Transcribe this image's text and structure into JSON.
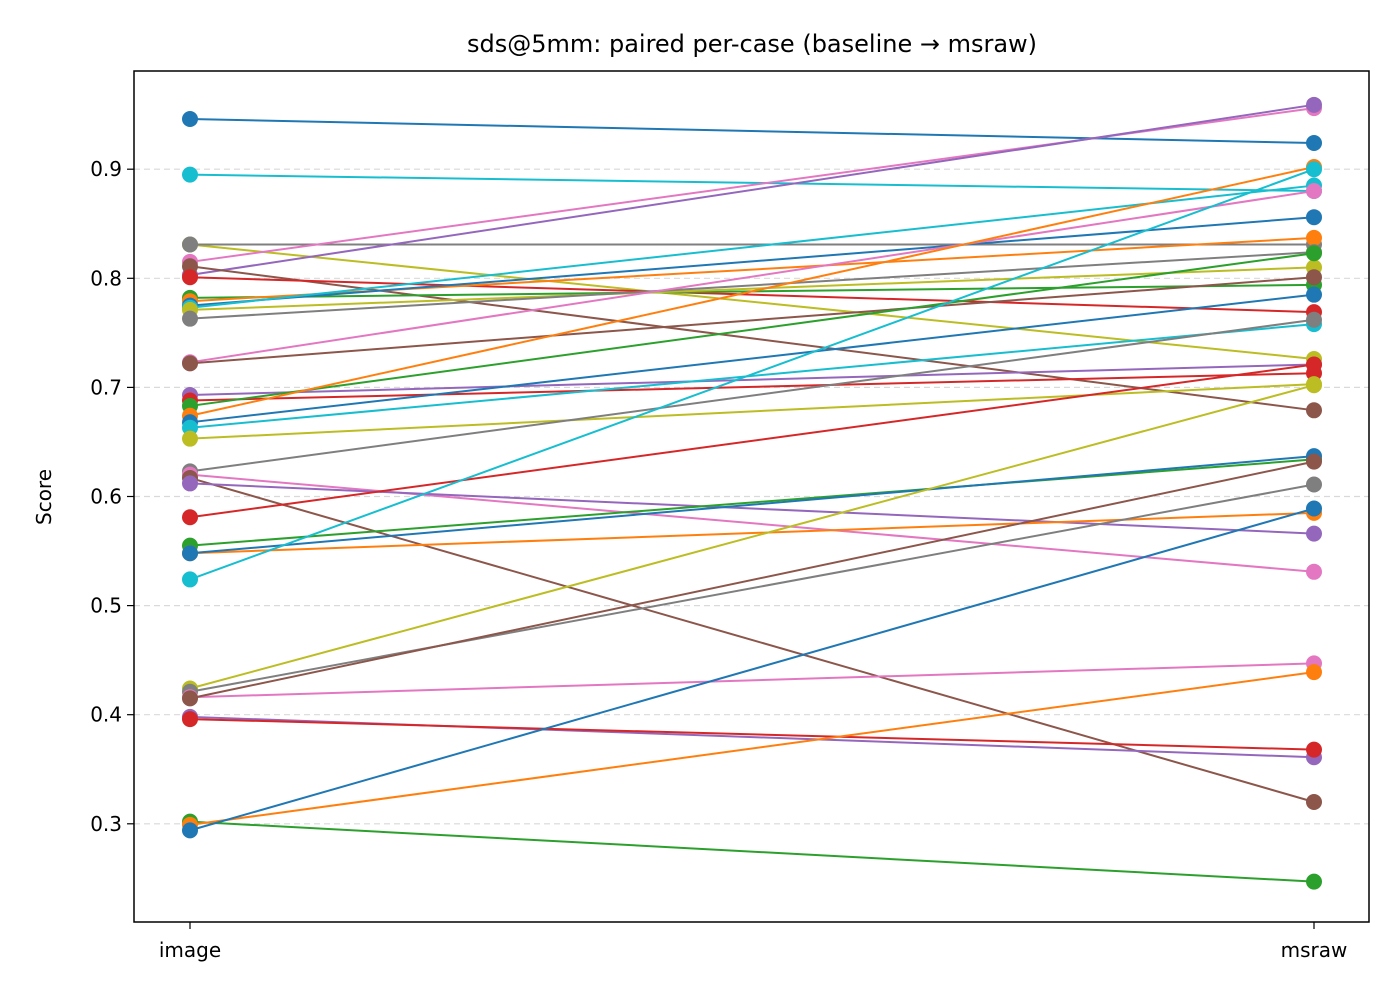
{
  "chart_data": {
    "type": "line",
    "title": "sds@5mm: paired per-case (baseline → msraw)",
    "xlabel": "",
    "ylabel": "Score",
    "categories": [
      "image",
      "msraw"
    ],
    "ylim": [
      0.21,
      0.99
    ],
    "yticks": [
      "0.3",
      "0.4",
      "0.5",
      "0.6",
      "0.7",
      "0.8",
      "0.9"
    ],
    "grid": "horizontal-dashed",
    "legend": "none",
    "series": [
      {
        "color": "#1f77b4",
        "values": [
          0.946,
          0.924
        ]
      },
      {
        "color": "#17becf",
        "values": [
          0.895,
          0.88
        ]
      },
      {
        "color": "#bcbd22",
        "values": [
          0.831,
          0.726
        ]
      },
      {
        "color": "#7f7f7f",
        "values": [
          0.831,
          0.831
        ]
      },
      {
        "color": "#e377c2",
        "values": [
          0.815,
          0.956
        ]
      },
      {
        "color": "#9467bd",
        "values": [
          0.803,
          0.959
        ]
      },
      {
        "color": "#8c564b",
        "values": [
          0.811,
          0.679
        ]
      },
      {
        "color": "#d62728",
        "values": [
          0.801,
          0.769
        ]
      },
      {
        "color": "#2ca02c",
        "values": [
          0.782,
          0.794
        ]
      },
      {
        "color": "#ff7f0e",
        "values": [
          0.779,
          0.837
        ]
      },
      {
        "color": "#1f77b4",
        "values": [
          0.775,
          0.856
        ]
      },
      {
        "color": "#17becf",
        "values": [
          0.773,
          0.885
        ]
      },
      {
        "color": "#bcbd22",
        "values": [
          0.771,
          0.81
        ]
      },
      {
        "color": "#7f7f7f",
        "values": [
          0.763,
          0.824
        ]
      },
      {
        "color": "#e377c2",
        "values": [
          0.723,
          0.88
        ]
      },
      {
        "color": "#8c564b",
        "values": [
          0.722,
          0.801
        ]
      },
      {
        "color": "#9467bd",
        "values": [
          0.693,
          0.721
        ]
      },
      {
        "color": "#d62728",
        "values": [
          0.688,
          0.713
        ]
      },
      {
        "color": "#2ca02c",
        "values": [
          0.683,
          0.823
        ]
      },
      {
        "color": "#ff7f0e",
        "values": [
          0.674,
          0.902
        ]
      },
      {
        "color": "#1f77b4",
        "values": [
          0.668,
          0.785
        ]
      },
      {
        "color": "#17becf",
        "values": [
          0.663,
          0.758
        ]
      },
      {
        "color": "#bcbd22",
        "values": [
          0.653,
          0.703
        ]
      },
      {
        "color": "#7f7f7f",
        "values": [
          0.623,
          0.762
        ]
      },
      {
        "color": "#e377c2",
        "values": [
          0.62,
          0.531
        ]
      },
      {
        "color": "#8c564b",
        "values": [
          0.617,
          0.32
        ]
      },
      {
        "color": "#9467bd",
        "values": [
          0.612,
          0.566
        ]
      },
      {
        "color": "#d62728",
        "values": [
          0.581,
          0.721
        ]
      },
      {
        "color": "#2ca02c",
        "values": [
          0.555,
          0.634
        ]
      },
      {
        "color": "#ff7f0e",
        "values": [
          0.548,
          0.585
        ]
      },
      {
        "color": "#1f77b4",
        "values": [
          0.548,
          0.637
        ]
      },
      {
        "color": "#17becf",
        "values": [
          0.524,
          0.9
        ]
      },
      {
        "color": "#bcbd22",
        "values": [
          0.424,
          0.702
        ]
      },
      {
        "color": "#7f7f7f",
        "values": [
          0.421,
          0.611
        ]
      },
      {
        "color": "#e377c2",
        "values": [
          0.416,
          0.447
        ]
      },
      {
        "color": "#8c564b",
        "values": [
          0.415,
          0.632
        ]
      },
      {
        "color": "#9467bd",
        "values": [
          0.398,
          0.361
        ]
      },
      {
        "color": "#d62728",
        "values": [
          0.396,
          0.368
        ]
      },
      {
        "color": "#2ca02c",
        "values": [
          0.302,
          0.247
        ]
      },
      {
        "color": "#ff7f0e",
        "values": [
          0.299,
          0.439
        ]
      },
      {
        "color": "#1f77b4",
        "values": [
          0.294,
          0.589
        ]
      }
    ]
  }
}
